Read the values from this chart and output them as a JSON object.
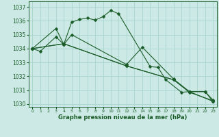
{
  "background_color": "#cce9e5",
  "grid_color": "#aad4cf",
  "line_color": "#1a5c28",
  "ylim": [
    1029.8,
    1037.4
  ],
  "xlim": [
    -0.5,
    23.5
  ],
  "yticks": [
    1030,
    1031,
    1032,
    1033,
    1034,
    1035,
    1036,
    1037
  ],
  "xticks": [
    0,
    1,
    2,
    3,
    4,
    5,
    6,
    7,
    8,
    9,
    10,
    11,
    12,
    13,
    14,
    15,
    16,
    17,
    18,
    19,
    20,
    21,
    22,
    23
  ],
  "xlabel": "Graphe pression niveau de la mer (hPa)",
  "s1_x": [
    0,
    1,
    3,
    4,
    5,
    6,
    7,
    8,
    9,
    10,
    11,
    15,
    16,
    17,
    19,
    20,
    23
  ],
  "s1_y": [
    1034.0,
    1033.8,
    1034.85,
    1034.3,
    1035.9,
    1036.1,
    1036.2,
    1036.05,
    1036.3,
    1036.75,
    1036.5,
    1032.7,
    1032.65,
    1031.75,
    1030.85,
    1030.9,
    1030.2
  ],
  "s2_x": [
    0,
    3,
    4,
    5,
    12,
    14,
    18,
    20,
    22,
    23
  ],
  "s2_y": [
    1034.0,
    1035.45,
    1034.3,
    1035.0,
    1032.85,
    1034.1,
    1031.8,
    1030.9,
    1030.9,
    1030.3
  ],
  "s3_x": [
    0,
    4,
    12,
    18,
    20,
    23
  ],
  "s3_y": [
    1034.0,
    1034.35,
    1032.75,
    1031.75,
    1030.85,
    1030.25
  ],
  "s4_x": [
    0,
    4,
    12,
    18,
    20,
    22,
    23
  ],
  "s4_y": [
    1034.0,
    1034.35,
    1032.75,
    1031.75,
    1030.9,
    1030.9,
    1030.2
  ],
  "lw": 0.8,
  "ms": 2.5,
  "xlabel_fontsize": 6.0,
  "ytick_fontsize": 5.5,
  "xtick_fontsize": 4.5
}
